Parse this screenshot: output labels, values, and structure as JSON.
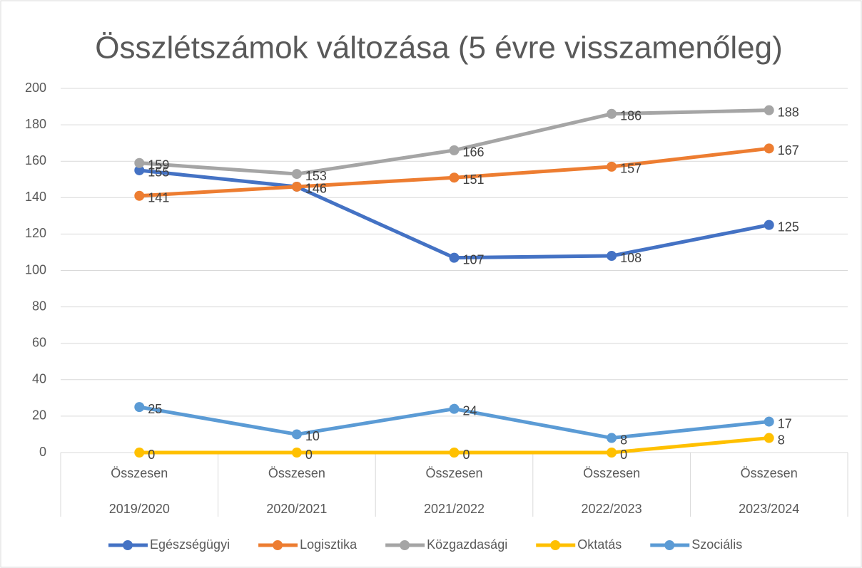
{
  "chart_data": {
    "type": "line",
    "title": "Összlétszámok változása (5 évre visszamenőleg)",
    "categories": [
      "2019/2020",
      "2020/2021",
      "2021/2022",
      "2022/2023",
      "2023/2024"
    ],
    "subcategories": [
      "Összesen",
      "Összesen",
      "Összesen",
      "Összesen",
      "Összesen"
    ],
    "series": [
      {
        "name": "Egészségügyi",
        "color": "#4472c4",
        "values": [
          155,
          146,
          107,
          108,
          125
        ]
      },
      {
        "name": "Logisztika",
        "color": "#ed7d31",
        "values": [
          141,
          146,
          151,
          157,
          167
        ]
      },
      {
        "name": "Közgazdasági",
        "color": "#a5a5a5",
        "values": [
          159,
          153,
          166,
          186,
          188
        ]
      },
      {
        "name": "Oktatás",
        "color": "#ffc000",
        "values": [
          0,
          0,
          0,
          0,
          8
        ]
      },
      {
        "name": "Szociális",
        "color": "#5b9bd5",
        "values": [
          25,
          10,
          24,
          8,
          17
        ]
      }
    ],
    "ylim": [
      0,
      200
    ],
    "yticks": [
      0,
      20,
      40,
      60,
      80,
      100,
      120,
      140,
      160,
      180,
      200
    ],
    "grid": true,
    "legend": "bottom"
  }
}
